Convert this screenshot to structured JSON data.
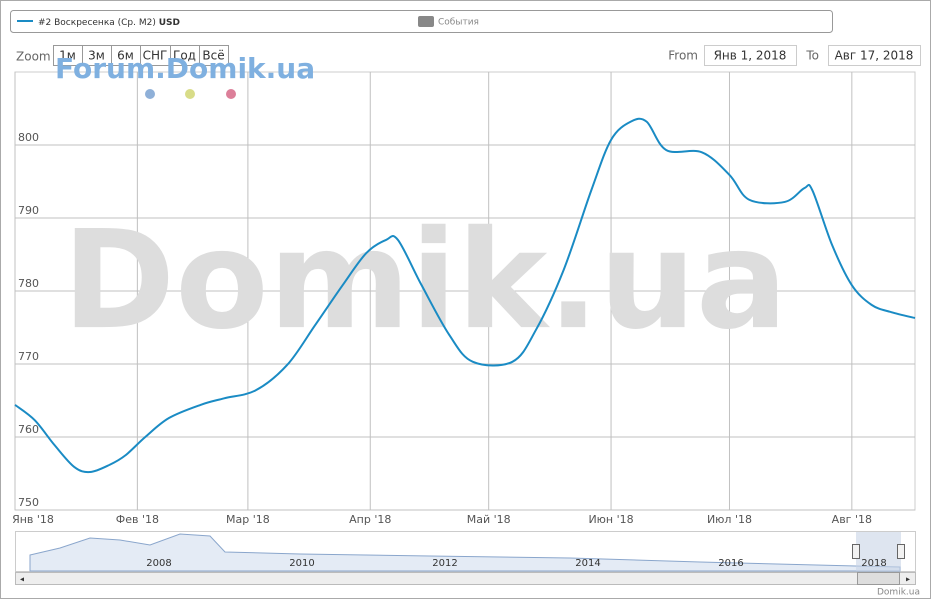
{
  "legend": {
    "events": "События"
  },
  "zoom": {
    "label": "Zoom",
    "buttons": [
      "1м",
      "3м",
      "6м",
      "СНГ",
      "Год",
      "Всё"
    ]
  },
  "range": {
    "from_label": "From",
    "from": "Янв 1, 2018",
    "to_label": "To",
    "to": "Авг 17, 2018"
  },
  "watermark": {
    "forum": "Forum.Domik.ua",
    "big": "Domik.ua"
  },
  "navigator": {
    "years": [
      "2008",
      "2010",
      "2012",
      "2014",
      "2016",
      "2018"
    ]
  },
  "credit": "Domik.ua",
  "chart_data": {
    "type": "line",
    "x": [
      "2018-01-01",
      "2018-01-06",
      "2018-01-11",
      "2018-01-16",
      "2018-01-20",
      "2018-01-25",
      "2018-01-29",
      "2018-02-03",
      "2018-02-09",
      "2018-02-17",
      "2018-02-23",
      "2018-03-03",
      "2018-03-11",
      "2018-03-18",
      "2018-03-25",
      "2018-03-31",
      "2018-04-05",
      "2018-04-08",
      "2018-04-14",
      "2018-04-21",
      "2018-04-27",
      "2018-05-07",
      "2018-05-13",
      "2018-05-20",
      "2018-05-27",
      "2018-06-01",
      "2018-06-06",
      "2018-06-10",
      "2018-06-15",
      "2018-06-24",
      "2018-07-01",
      "2018-07-06",
      "2018-07-15",
      "2018-07-20",
      "2018-07-22",
      "2018-07-27",
      "2018-08-01",
      "2018-08-06",
      "2018-08-11",
      "2018-08-17"
    ],
    "series": [
      {
        "name": "#2 Воскресенка (Ср. M2)",
        "unit": "USD",
        "color": "#1a8bc4",
        "values": [
          764.4,
          762.3,
          758.9,
          755.9,
          755.2,
          756.2,
          757.5,
          760,
          762.6,
          764.4,
          765.3,
          766.4,
          769.9,
          775.3,
          780.8,
          785.2,
          787,
          787,
          780.8,
          774,
          770.3,
          770.3,
          774.7,
          782.9,
          793.8,
          800.7,
          803.2,
          803.2,
          799.3,
          799,
          795.9,
          792.5,
          792.2,
          794.1,
          793.8,
          786.3,
          780.8,
          778.1,
          777.1,
          776.3
        ]
      }
    ],
    "xlim": [
      "2018-01-01",
      "2018-08-17"
    ],
    "xticks": [
      {
        "value": "2018-01-01",
        "label": "Янв '18"
      },
      {
        "value": "2018-02-01",
        "label": "Фев '18"
      },
      {
        "value": "2018-03-01",
        "label": "Мар '18"
      },
      {
        "value": "2018-04-01",
        "label": "Апр '18"
      },
      {
        "value": "2018-05-01",
        "label": "Май '18"
      },
      {
        "value": "2018-06-01",
        "label": "Июн '18"
      },
      {
        "value": "2018-07-01",
        "label": "Июл '18"
      },
      {
        "value": "2018-08-01",
        "label": "Авг '18"
      }
    ],
    "ylim": [
      750,
      810
    ],
    "yticks": [
      750,
      760,
      770,
      780,
      790,
      800
    ],
    "grid": true
  }
}
